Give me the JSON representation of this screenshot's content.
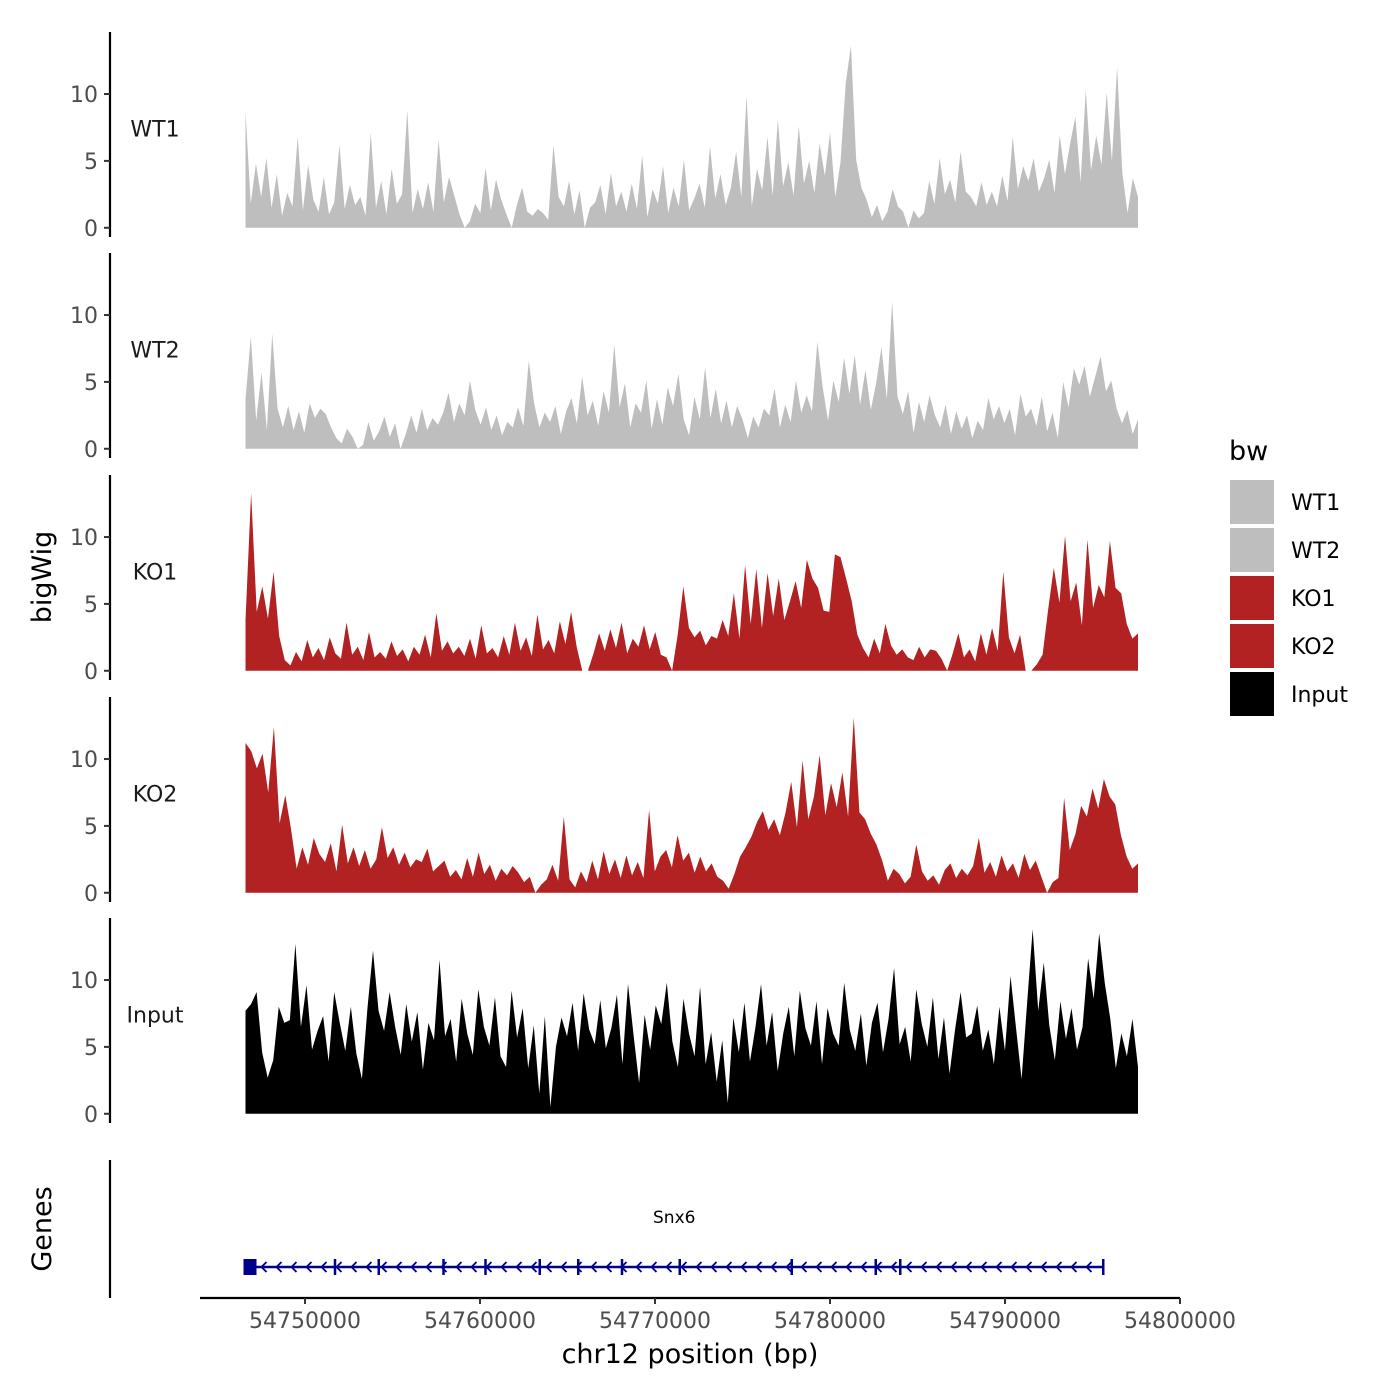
{
  "chart_data": {
    "type": "area",
    "chromosome": "chr12",
    "xlabel": "chr12 position (bp)",
    "ylabel": "bigWig",
    "genes_label": "Genes",
    "xlim": [
      54744000,
      54800000
    ],
    "x_ticks": [
      54750000,
      54760000,
      54770000,
      54780000,
      54790000,
      54800000
    ],
    "x_tick_labels": [
      "54750000",
      "54760000",
      "54770000",
      "54780000",
      "54790000",
      "54800000"
    ],
    "data_range": [
      54746600,
      54797600
    ],
    "ylim": [
      0,
      14.5
    ],
    "y_ticks": [
      0,
      5,
      10
    ],
    "y_tick_labels": [
      "0",
      "5",
      "10"
    ],
    "legend": {
      "title": "bw",
      "entries": [
        {
          "label": "WT1",
          "color": "#bebebe"
        },
        {
          "label": "WT2",
          "color": "#bebebe"
        },
        {
          "label": "KO1",
          "color": "#b22222"
        },
        {
          "label": "KO2",
          "color": "#b22222"
        },
        {
          "label": "Input",
          "color": "#000000"
        }
      ]
    },
    "series": [
      {
        "name": "WT1",
        "color": "#bebebe",
        "values": [
          8.7,
          1.8,
          4.8,
          2.3,
          5.2,
          1.5,
          4.0,
          0.9,
          2.6,
          1.6,
          6.8,
          1.3,
          4.7,
          2.1,
          1.2,
          3.8,
          1.0,
          1.9,
          6.2,
          1.4,
          3.2,
          1.7,
          2.3,
          0.9,
          7.1,
          1.5,
          3.5,
          1.0,
          4.4,
          1.8,
          2.5,
          8.8,
          1.1,
          2.9,
          1.4,
          3.4,
          1.2,
          6.6,
          1.9,
          3.8,
          2.4,
          1.0,
          0.0,
          0.5,
          1.8,
          1.1,
          4.5,
          1.3,
          3.6,
          2.1,
          1.0,
          0.0,
          1.7,
          3.0,
          1.2,
          0.9,
          1.4,
          1.1,
          0.6,
          6.2,
          2.3,
          1.6,
          3.5,
          1.0,
          2.8,
          0.0,
          1.5,
          1.9,
          3.2,
          1.0,
          4.1,
          1.6,
          2.7,
          1.2,
          3.3,
          1.4,
          5.4,
          0.8,
          2.9,
          1.8,
          4.6,
          1.1,
          3.0,
          1.6,
          5.1,
          1.3,
          2.2,
          3.3,
          1.5,
          6.1,
          2.2,
          4.0,
          1.7,
          3.0,
          5.7,
          2.3,
          9.9,
          1.6,
          4.4,
          2.8,
          6.8,
          2.4,
          8.1,
          3.1,
          4.9,
          2.4,
          7.6,
          3.3,
          5.0,
          2.6,
          6.3,
          3.9,
          7.1,
          2.3,
          4.9,
          10.8,
          13.6,
          5.1,
          3.0,
          2.1,
          0.8,
          1.7,
          0.5,
          1.2,
          2.9,
          1.6,
          1.2,
          0.0,
          1.3,
          0.7,
          1.1,
          3.5,
          1.8,
          5.2,
          2.5,
          3.6,
          1.9,
          5.7,
          2.7,
          2.3,
          1.6,
          3.4,
          1.7,
          2.7,
          1.6,
          3.9,
          2.0,
          6.8,
          2.9,
          4.6,
          3.5,
          5.2,
          2.7,
          3.7,
          5.1,
          2.6,
          6.9,
          4.0,
          6.3,
          8.3,
          3.4,
          10.3,
          4.3,
          6.9,
          4.7,
          10.1,
          5.0,
          12.0,
          4.1,
          1.1,
          3.7,
          2.3
        ]
      },
      {
        "name": "WT2",
        "color": "#bebebe",
        "values": [
          3.7,
          8.4,
          2.1,
          5.7,
          1.4,
          8.6,
          3.0,
          1.6,
          3.2,
          1.4,
          2.8,
          1.2,
          3.4,
          2.3,
          3.0,
          2.6,
          1.6,
          0.8,
          0.4,
          1.5,
          0.9,
          0.0,
          0.3,
          2.0,
          0.6,
          1.3,
          2.4,
          0.9,
          1.9,
          0.0,
          1.1,
          2.5,
          1.2,
          3.0,
          1.4,
          2.3,
          1.8,
          2.7,
          4.2,
          2.0,
          3.4,
          2.5,
          5.1,
          2.9,
          1.8,
          3.1,
          1.4,
          2.5,
          1.0,
          2.0,
          1.6,
          3.1,
          1.7,
          6.6,
          3.4,
          1.6,
          2.7,
          2.0,
          3.2,
          1.1,
          2.8,
          3.8,
          1.9,
          5.4,
          2.5,
          3.6,
          1.7,
          4.3,
          2.7,
          7.8,
          3.1,
          4.9,
          1.6,
          3.4,
          2.7,
          5.1,
          1.5,
          3.7,
          1.8,
          4.6,
          3.2,
          5.6,
          2.2,
          1.0,
          3.9,
          2.2,
          6.1,
          2.3,
          4.5,
          1.9,
          3.6,
          1.6,
          3.2,
          2.2,
          0.8,
          2.4,
          1.6,
          3.0,
          2.5,
          4.5,
          1.6,
          3.3,
          2.0,
          5.1,
          2.7,
          4.0,
          2.8,
          8.0,
          4.6,
          2.1,
          5.1,
          3.5,
          6.8,
          4.1,
          7.0,
          3.3,
          5.9,
          2.9,
          4.9,
          7.6,
          3.7,
          11.0,
          3.9,
          2.6,
          4.3,
          1.2,
          3.5,
          2.0,
          4.0,
          2.5,
          1.6,
          3.3,
          1.1,
          2.8,
          1.5,
          2.5,
          0.8,
          2.1,
          1.4,
          3.8,
          2.2,
          3.2,
          1.9,
          3.0,
          1.0,
          4.1,
          2.4,
          3.0,
          1.7,
          3.9,
          1.3,
          2.7,
          0.8,
          5.0,
          3.1,
          6.0,
          4.8,
          6.2,
          3.9,
          5.4,
          6.9,
          4.3,
          5.1,
          3.0,
          1.9,
          2.9,
          1.1,
          2.2
        ]
      },
      {
        "name": "KO1",
        "color": "#b22222",
        "values": [
          3.8,
          13.3,
          4.4,
          6.3,
          3.9,
          7.4,
          2.6,
          0.8,
          0.4,
          1.4,
          0.7,
          2.3,
          1.0,
          1.7,
          0.8,
          2.5,
          1.3,
          0.9,
          3.6,
          1.2,
          1.8,
          0.8,
          2.9,
          1.0,
          1.4,
          0.9,
          2.2,
          1.1,
          1.6,
          0.7,
          1.8,
          1.2,
          2.7,
          1.0,
          4.3,
          1.5,
          2.2,
          1.3,
          1.8,
          1.1,
          2.4,
          0.9,
          3.4,
          1.3,
          1.7,
          1.0,
          2.6,
          1.2,
          3.6,
          1.5,
          2.5,
          1.1,
          4.2,
          1.6,
          2.3,
          1.3,
          3.7,
          2.0,
          4.4,
          1.8,
          0.0,
          0.0,
          1.3,
          2.8,
          1.5,
          3.1,
          1.7,
          3.6,
          1.3,
          2.4,
          1.8,
          3.4,
          1.6,
          2.9,
          1.2,
          1.0,
          0.0,
          2.7,
          6.3,
          3.2,
          2.5,
          3.0,
          1.9,
          2.6,
          2.4,
          3.8,
          2.6,
          5.8,
          2.4,
          7.9,
          3.5,
          7.6,
          3.2,
          7.3,
          4.1,
          6.9,
          3.8,
          5.2,
          6.7,
          4.7,
          8.3,
          6.9,
          6.2,
          4.5,
          4.4,
          8.7,
          8.5,
          6.9,
          5.2,
          2.7,
          1.7,
          1.0,
          2.4,
          1.3,
          3.5,
          1.9,
          1.2,
          1.6,
          1.0,
          0.8,
          1.8,
          1.0,
          1.6,
          1.5,
          0.9,
          0.0,
          1.3,
          2.8,
          1.0,
          1.6,
          0.7,
          2.8,
          1.2,
          3.2,
          1.5,
          7.4,
          2.5,
          1.3,
          2.7,
          0.0,
          0.0,
          0.5,
          1.2,
          4.6,
          7.7,
          5.1,
          10.1,
          5.2,
          6.6,
          3.4,
          9.8,
          4.7,
          6.4,
          5.5,
          9.7,
          6.2,
          5.8,
          3.5,
          2.4,
          2.8
        ]
      },
      {
        "name": "KO2",
        "color": "#b22222",
        "values": [
          11.2,
          10.6,
          9.3,
          10.4,
          7.5,
          12.4,
          5.2,
          7.3,
          4.8,
          1.8,
          3.4,
          2.1,
          4.1,
          2.9,
          2.3,
          3.7,
          1.6,
          5.1,
          2.2,
          3.4,
          2.0,
          3.2,
          1.8,
          2.5,
          4.9,
          2.6,
          3.4,
          2.1,
          3.0,
          1.9,
          2.5,
          2.3,
          3.3,
          1.6,
          2.0,
          2.4,
          1.2,
          1.7,
          1.0,
          2.6,
          1.2,
          3.0,
          1.4,
          2.1,
          0.9,
          1.8,
          1.3,
          2.0,
          1.5,
          0.8,
          1.2,
          0.0,
          0.6,
          1.0,
          2.1,
          0.9,
          5.7,
          1.0,
          0.4,
          1.6,
          0.8,
          2.4,
          1.0,
          3.1,
          1.4,
          2.5,
          1.1,
          2.8,
          1.3,
          2.3,
          1.1,
          6.2,
          1.6,
          2.7,
          3.2,
          1.9,
          4.3,
          2.4,
          3.0,
          1.5,
          2.7,
          1.6,
          2.2,
          1.2,
          0.9,
          0.3,
          1.4,
          2.7,
          3.4,
          4.2,
          5.3,
          6.1,
          4.7,
          5.5,
          4.3,
          6.0,
          8.3,
          4.9,
          9.9,
          5.5,
          7.2,
          10.3,
          5.8,
          8.2,
          6.4,
          9.0,
          5.7,
          13.1,
          6.0,
          5.5,
          4.4,
          3.6,
          2.4,
          0.9,
          1.8,
          1.4,
          0.7,
          1.2,
          3.6,
          1.6,
          0.9,
          1.3,
          0.6,
          1.7,
          2.2,
          1.1,
          1.8,
          1.3,
          2.0,
          4.1,
          1.5,
          2.3,
          1.2,
          2.8,
          1.6,
          2.2,
          1.1,
          2.9,
          1.7,
          2.4,
          1.2,
          0.0,
          0.8,
          1.1,
          7.1,
          3.2,
          4.4,
          6.5,
          5.7,
          7.8,
          6.3,
          8.5,
          7.2,
          6.6,
          4.3,
          2.7,
          1.8,
          2.2
        ]
      },
      {
        "name": "Input",
        "color": "#000000",
        "values": [
          7.7,
          8.2,
          9.1,
          4.6,
          2.7,
          4.0,
          8.0,
          6.8,
          7.0,
          12.7,
          6.5,
          9.6,
          4.8,
          6.2,
          7.3,
          3.9,
          9.1,
          6.8,
          4.7,
          8.0,
          4.5,
          2.6,
          7.9,
          12.2,
          7.7,
          6.2,
          9.1,
          6.5,
          4.4,
          8.2,
          5.4,
          7.6,
          3.3,
          6.8,
          5.5,
          11.5,
          5.8,
          7.1,
          3.9,
          8.6,
          6.0,
          4.4,
          9.3,
          6.5,
          5.1,
          8.7,
          4.3,
          3.5,
          9.2,
          5.7,
          7.9,
          3.4,
          6.6,
          1.5,
          7.3,
          0.5,
          5.0,
          7.2,
          5.8,
          8.3,
          4.7,
          9.0,
          6.3,
          5.2,
          8.5,
          4.9,
          6.4,
          8.9,
          3.7,
          9.7,
          5.9,
          2.3,
          7.4,
          4.8,
          8.1,
          6.7,
          9.8,
          5.4,
          3.5,
          8.6,
          6.0,
          4.3,
          9.5,
          3.7,
          6.1,
          2.4,
          5.5,
          0.8,
          7.2,
          4.6,
          8.3,
          3.9,
          6.5,
          9.7,
          5.1,
          7.6,
          3.2,
          6.0,
          8.0,
          4.3,
          9.2,
          6.4,
          5.1,
          8.4,
          3.7,
          7.9,
          6.0,
          5.1,
          9.8,
          6.3,
          4.7,
          7.5,
          3.6,
          6.8,
          8.3,
          4.6,
          7.1,
          10.9,
          5.2,
          6.5,
          3.9,
          9.3,
          6.7,
          5.0,
          8.7,
          4.1,
          7.2,
          3.0,
          6.3,
          9.1,
          5.7,
          6.0,
          8.1,
          4.7,
          6.3,
          3.7,
          8.0,
          4.7,
          10.3,
          6.4,
          2.6,
          8.3,
          13.8,
          7.7,
          11.3,
          6.6,
          4.0,
          8.4,
          5.6,
          7.9,
          4.8,
          6.5,
          11.6,
          8.6,
          13.5,
          9.8,
          7.1,
          3.4,
          6.0,
          4.3,
          7.1,
          3.5
        ]
      }
    ],
    "gene": {
      "name": "Snx6",
      "start": 54746600,
      "end": 54795600,
      "strand": "-",
      "exons": [
        54746600,
        54751700,
        54754200,
        54757900,
        54760300,
        54763400,
        54765600,
        54768100,
        54771400,
        54777800,
        54782600,
        54784000,
        54795600
      ],
      "color": "#00008b"
    }
  }
}
